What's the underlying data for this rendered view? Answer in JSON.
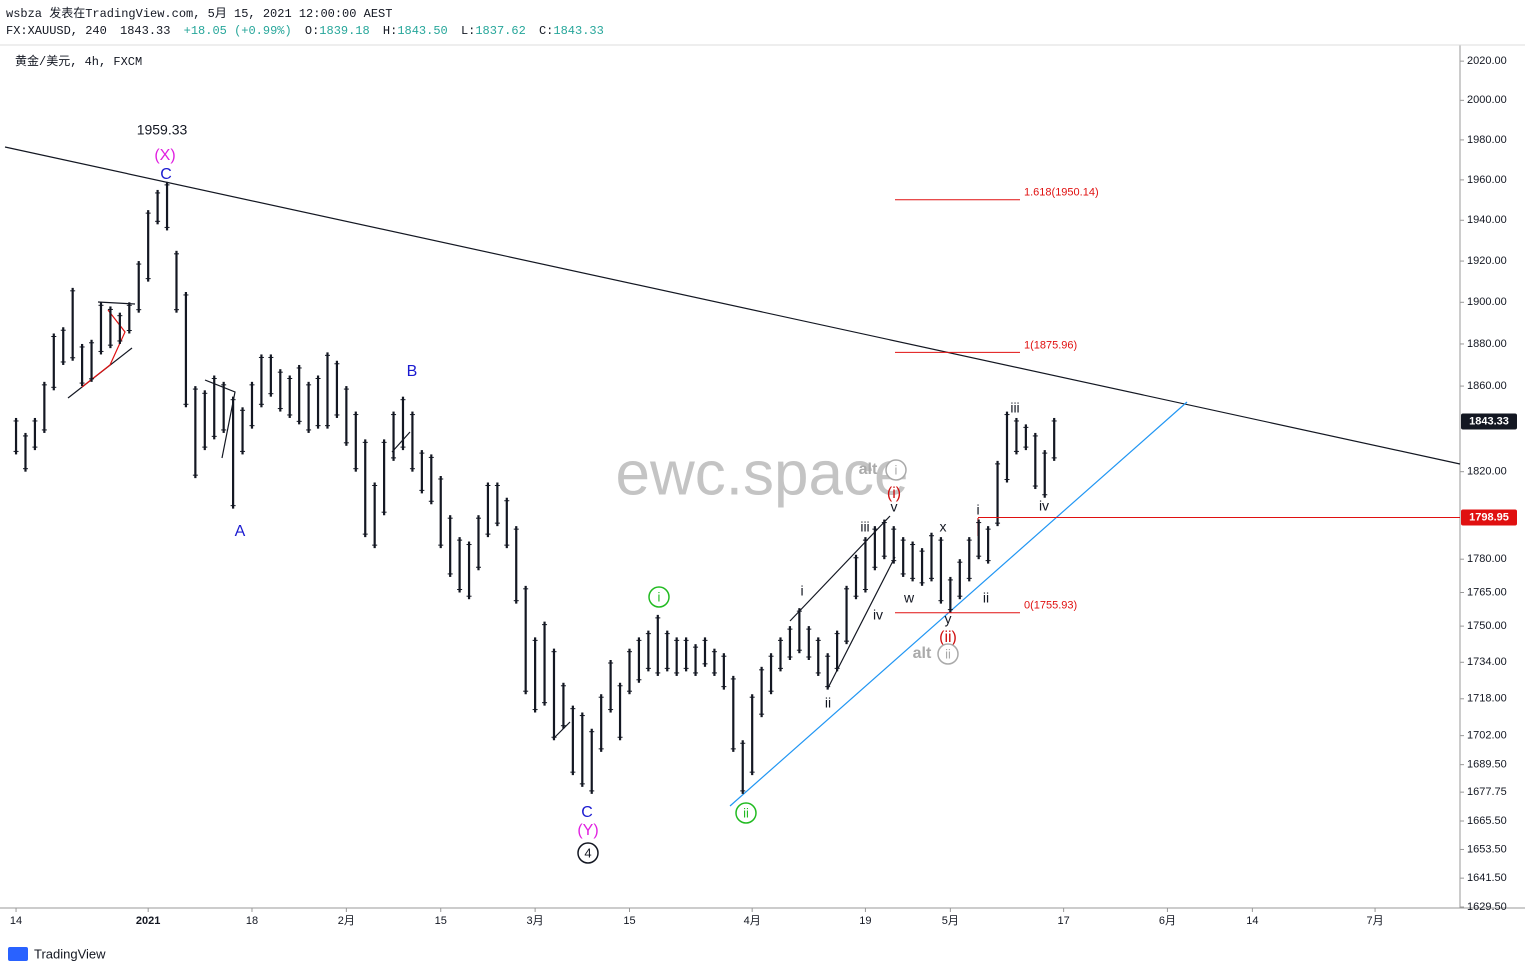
{
  "header": {
    "publish": "wsbza 发表在TradingView.com, 5月 15, 2021 12:00:00 AEST",
    "symbol": "FX:XAUUSD, 240",
    "price": "1843.33",
    "change": "+18.05 (+0.99%)",
    "ohlc": [
      {
        "label": "O:",
        "value": "1839.18"
      },
      {
        "label": "H:",
        "value": "1843.50"
      },
      {
        "label": "L:",
        "value": "1837.62"
      },
      {
        "label": "C:",
        "value": "1843.33"
      }
    ]
  },
  "footer": "TradingView",
  "chart_data": {
    "type": "ohlc",
    "title": "黄金/美元, 4h, FXCM",
    "watermark": "ewc.space",
    "log": true,
    "color": "#131722",
    "xlim": [
      -1.7,
      153
    ],
    "ylim": [
      1629.1,
      2028.3
    ],
    "x": [
      0,
      1,
      2,
      3,
      4,
      5,
      6,
      7,
      8,
      9,
      10,
      11,
      12,
      13,
      14,
      15,
      16,
      17,
      18,
      19,
      20,
      21,
      22,
      23,
      24,
      25,
      26,
      27,
      28,
      29,
      30,
      31,
      32,
      33,
      34,
      35,
      36,
      37,
      38,
      39,
      40,
      41,
      42,
      43,
      44,
      45,
      46,
      47,
      48,
      49,
      50,
      51,
      52,
      53,
      54,
      55,
      56,
      57,
      58,
      59,
      60,
      61,
      62,
      63,
      64,
      65,
      66,
      67,
      68,
      69,
      70,
      71,
      72,
      73,
      74,
      75,
      76,
      77,
      78,
      79,
      80,
      81,
      82,
      83,
      84,
      85,
      86,
      87,
      88,
      89,
      90,
      91,
      92,
      93,
      94,
      95,
      96,
      97,
      98,
      99,
      100,
      101,
      102,
      103,
      104,
      105,
      106,
      107,
      108,
      109,
      110
    ],
    "high": [
      1845,
      1838,
      1845,
      1862,
      1885,
      1888,
      1907,
      1880,
      1882,
      1900,
      1898,
      1895,
      1900,
      1920,
      1945,
      1955,
      1959,
      1925,
      1905,
      1860,
      1858,
      1865,
      1862,
      1855,
      1850,
      1862,
      1875,
      1875,
      1868,
      1865,
      1870,
      1862,
      1865,
      1876,
      1872,
      1860,
      1848,
      1835,
      1815,
      1835,
      1848,
      1855,
      1848,
      1830,
      1828,
      1818,
      1800,
      1790,
      1788,
      1800,
      1815,
      1815,
      1808,
      1795,
      1768,
      1745,
      1752,
      1740,
      1725,
      1715,
      1712,
      1705,
      1720,
      1735,
      1725,
      1740,
      1745,
      1748,
      1755,
      1748,
      1745,
      1745,
      1742,
      1745,
      1740,
      1738,
      1728,
      1700,
      1720,
      1732,
      1738,
      1745,
      1750,
      1758,
      1750,
      1745,
      1738,
      1748,
      1768,
      1782,
      1790,
      1795,
      1798,
      1795,
      1790,
      1788,
      1785,
      1792,
      1790,
      1772,
      1780,
      1790,
      1798,
      1795,
      1825,
      1848,
      1845,
      1842,
      1838,
      1830,
      1845
    ],
    "low": [
      1828,
      1820,
      1830,
      1838,
      1858,
      1870,
      1872,
      1860,
      1862,
      1875,
      1878,
      1880,
      1885,
      1895,
      1910,
      1938,
      1935,
      1895,
      1850,
      1817,
      1830,
      1835,
      1838,
      1803,
      1828,
      1840,
      1850,
      1855,
      1848,
      1845,
      1842,
      1838,
      1840,
      1840,
      1845,
      1832,
      1820,
      1790,
      1785,
      1800,
      1825,
      1830,
      1820,
      1810,
      1805,
      1785,
      1772,
      1765,
      1762,
      1775,
      1790,
      1795,
      1785,
      1760,
      1720,
      1712,
      1715,
      1700,
      1705,
      1685,
      1680,
      1677,
      1695,
      1712,
      1700,
      1720,
      1725,
      1730,
      1728,
      1730,
      1728,
      1730,
      1728,
      1732,
      1728,
      1722,
      1695,
      1677,
      1685,
      1710,
      1720,
      1730,
      1735,
      1738,
      1735,
      1728,
      1722,
      1730,
      1742,
      1762,
      1765,
      1775,
      1780,
      1778,
      1772,
      1770,
      1768,
      1770,
      1760,
      1756,
      1762,
      1770,
      1780,
      1778,
      1795,
      1815,
      1828,
      1830,
      1812,
      1808,
      1825
    ],
    "xticks": [
      {
        "value": 0,
        "label": "14"
      },
      {
        "value": 14,
        "label": "2021"
      },
      {
        "value": 25,
        "label": "18"
      },
      {
        "value": 35,
        "label": "2月"
      },
      {
        "value": 45,
        "label": "15"
      },
      {
        "value": 55,
        "label": "3月"
      },
      {
        "value": 65,
        "label": "15"
      },
      {
        "value": 78,
        "label": "4月"
      },
      {
        "value": 90,
        "label": "19"
      },
      {
        "value": 99,
        "label": "5月"
      },
      {
        "value": 111,
        "label": "17"
      },
      {
        "value": 122,
        "label": "6月"
      },
      {
        "value": 131,
        "label": "14"
      },
      {
        "value": 144,
        "label": "7月"
      }
    ],
    "yticks": [
      {
        "value": 2020,
        "label": "2020.00"
      },
      {
        "value": 2000,
        "label": "2000.00"
      },
      {
        "value": 1980,
        "label": "1980.00"
      },
      {
        "value": 1960,
        "label": "1960.00"
      },
      {
        "value": 1940,
        "label": "1940.00"
      },
      {
        "value": 1920,
        "label": "1920.00"
      },
      {
        "value": 1900,
        "label": "1900.00"
      },
      {
        "value": 1880,
        "label": "1880.00"
      },
      {
        "value": 1860,
        "label": "1860.00"
      },
      {
        "value": 1820,
        "label": "1820.00"
      },
      {
        "value": 1780,
        "label": "1780.00"
      },
      {
        "value": 1765,
        "label": "1765.00"
      },
      {
        "value": 1750,
        "label": "1750.00"
      },
      {
        "value": 1734,
        "label": "1734.00"
      },
      {
        "value": 1718,
        "label": "1718.00"
      },
      {
        "value": 1702,
        "label": "1702.00"
      },
      {
        "value": 1689.5,
        "label": "1689.50"
      },
      {
        "value": 1677.75,
        "label": "1677.75"
      },
      {
        "value": 1665.5,
        "label": "1665.50"
      },
      {
        "value": 1653.5,
        "label": "1653.50"
      },
      {
        "value": 1641.5,
        "label": "1641.50"
      },
      {
        "value": 1629.5,
        "label": "1629.50"
      }
    ],
    "price_labels": [
      {
        "value": 1843.33,
        "label": "1843.33",
        "color": "#131722"
      },
      {
        "value": 1798.95,
        "label": "1798.95",
        "color": "#e01010"
      }
    ],
    "fib_levels": [
      {
        "value": 1950.14,
        "label": "1.618(1950.14)"
      },
      {
        "value": 1875.96,
        "label": "1(1875.96)"
      },
      {
        "value": 1755.93,
        "label": "0(1755.93)"
      }
    ],
    "annotations": [
      {
        "text": "1959.33",
        "color": "#131722"
      },
      {
        "text": "(X)",
        "color": "#e020e0"
      },
      {
        "text": "C",
        "color": "#1a1ad0"
      },
      {
        "text": "A",
        "color": "#1a1ad0"
      },
      {
        "text": "B",
        "color": "#1a1ad0"
      },
      {
        "text": "C",
        "color": "#1a1ad0"
      },
      {
        "text": "(Y)",
        "color": "#e020e0"
      },
      {
        "text": "4",
        "color": "#131722",
        "circled": true
      },
      {
        "text": "i",
        "color": "#22bb22",
        "circled": true
      },
      {
        "text": "ii",
        "color": "#22bb22",
        "circled": true
      },
      {
        "text": "i",
        "color": "#131722"
      },
      {
        "text": "ii",
        "color": "#131722"
      },
      {
        "text": "iii",
        "color": "#131722"
      },
      {
        "text": "iv",
        "color": "#131722"
      },
      {
        "text": "v",
        "color": "#131722"
      },
      {
        "text": "(i)",
        "color": "#d01010"
      },
      {
        "text": "alt",
        "color": "#aaaaaa"
      },
      {
        "text": "i",
        "color": "#aaaaaa",
        "circled": true
      },
      {
        "text": "w",
        "color": "#131722"
      },
      {
        "text": "x",
        "color": "#131722"
      },
      {
        "text": "y",
        "color": "#131722"
      },
      {
        "text": "(ii)",
        "color": "#d01010"
      },
      {
        "text": "alt",
        "color": "#aaaaaa"
      },
      {
        "text": "ii",
        "color": "#aaaaaa",
        "circled": true
      },
      {
        "text": "i",
        "color": "#131722"
      },
      {
        "text": "ii",
        "color": "#131722"
      },
      {
        "text": "iii",
        "color": "#131722"
      },
      {
        "text": "iv",
        "color": "#131722"
      }
    ]
  }
}
